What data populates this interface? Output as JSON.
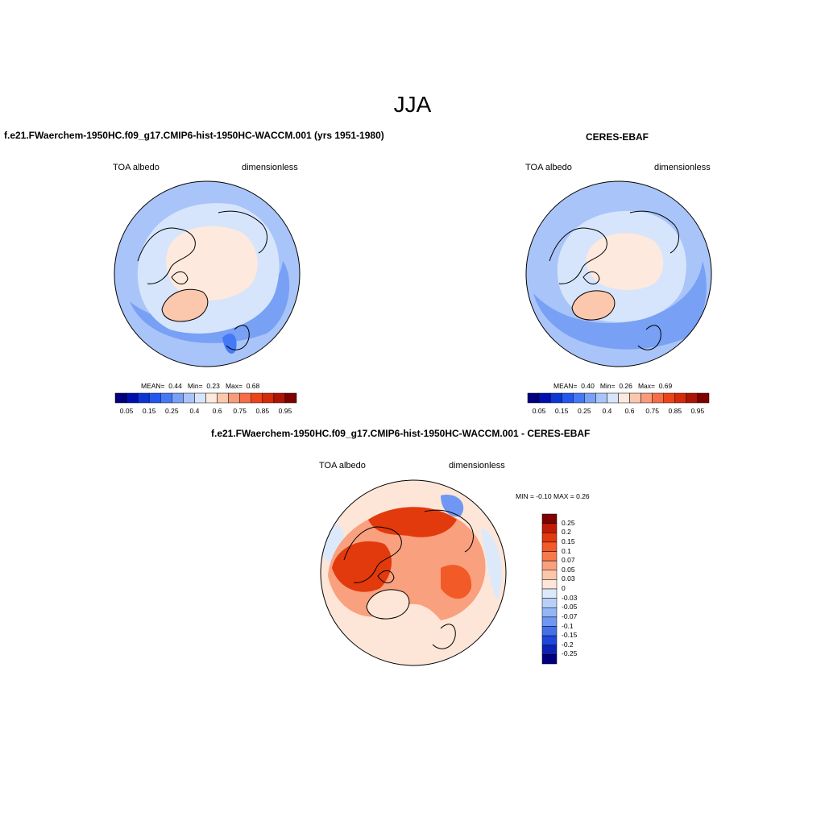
{
  "season": "JJA",
  "panels": {
    "model": {
      "title": "f.e21.FWaerchem-1950HC.f09_g17.CMIP6-hist-1950HC-WACCM.001 (yrs 1951-1980)",
      "variable": "TOA albedo",
      "units": "dimensionless",
      "mean_label": "MEAN=",
      "mean_value": "0.44",
      "min_label": "Min=",
      "min_value": "0.23",
      "max_label": "Max=",
      "max_value": "0.68"
    },
    "obs": {
      "title": "CERES-EBAF",
      "variable": "TOA albedo",
      "units": "dimensionless",
      "mean_label": "MEAN=",
      "mean_value": "0.40",
      "min_label": "Min=",
      "min_value": "0.26",
      "max_label": "Max=",
      "max_value": "0.69"
    },
    "diff": {
      "title": "f.e21.FWaerchem-1950HC.f09_g17.CMIP6-hist-1950HC-WACCM.001 - CERES-EBAF",
      "variable": "TOA albedo",
      "units": "dimensionless",
      "minmax_text": "MIN =  -0.10 MAX =   0.26"
    }
  },
  "colorbar_abs": {
    "labels": [
      "0.05",
      "0.15",
      "0.25",
      "0.4",
      "0.6",
      "0.75",
      "0.85",
      "0.95"
    ],
    "colors": [
      "#00007f",
      "#0010b0",
      "#0c35d6",
      "#2256ee",
      "#4479f6",
      "#78a0f5",
      "#a9c4f8",
      "#d6e5fb",
      "#fde9dd",
      "#fbc7ad",
      "#f99a78",
      "#f66d47",
      "#ec4418",
      "#d42b0a",
      "#ad1405",
      "#7f0000"
    ]
  },
  "colorbar_diff": {
    "labels": [
      "0.25",
      "0.2",
      "0.15",
      "0.1",
      "0.07",
      "0.05",
      "0.03",
      "0",
      "-0.03",
      "-0.05",
      "-0.07",
      "-0.1",
      "-0.15",
      "-0.2",
      "-0.25"
    ],
    "colors": [
      "#7f0000",
      "#c01b05",
      "#e23a0c",
      "#f25a27",
      "#f77a4c",
      "#f9a07e",
      "#fcc6a9",
      "#fde6d8",
      "#dce9fb",
      "#b8d0f8",
      "#94b6f6",
      "#6f97f3",
      "#4470ea",
      "#1f47dc",
      "#0b22b2",
      "#00007f"
    ]
  },
  "colors": {
    "ocean_light": "#d6e5fb",
    "ocean_mid": "#a9c4f8",
    "ocean_deep": "#78a0f5",
    "warm_light": "#fde9dd",
    "warm_mid": "#fbc7ad",
    "diff_strong": "#ec4418",
    "diff_mid": "#f99a78"
  }
}
